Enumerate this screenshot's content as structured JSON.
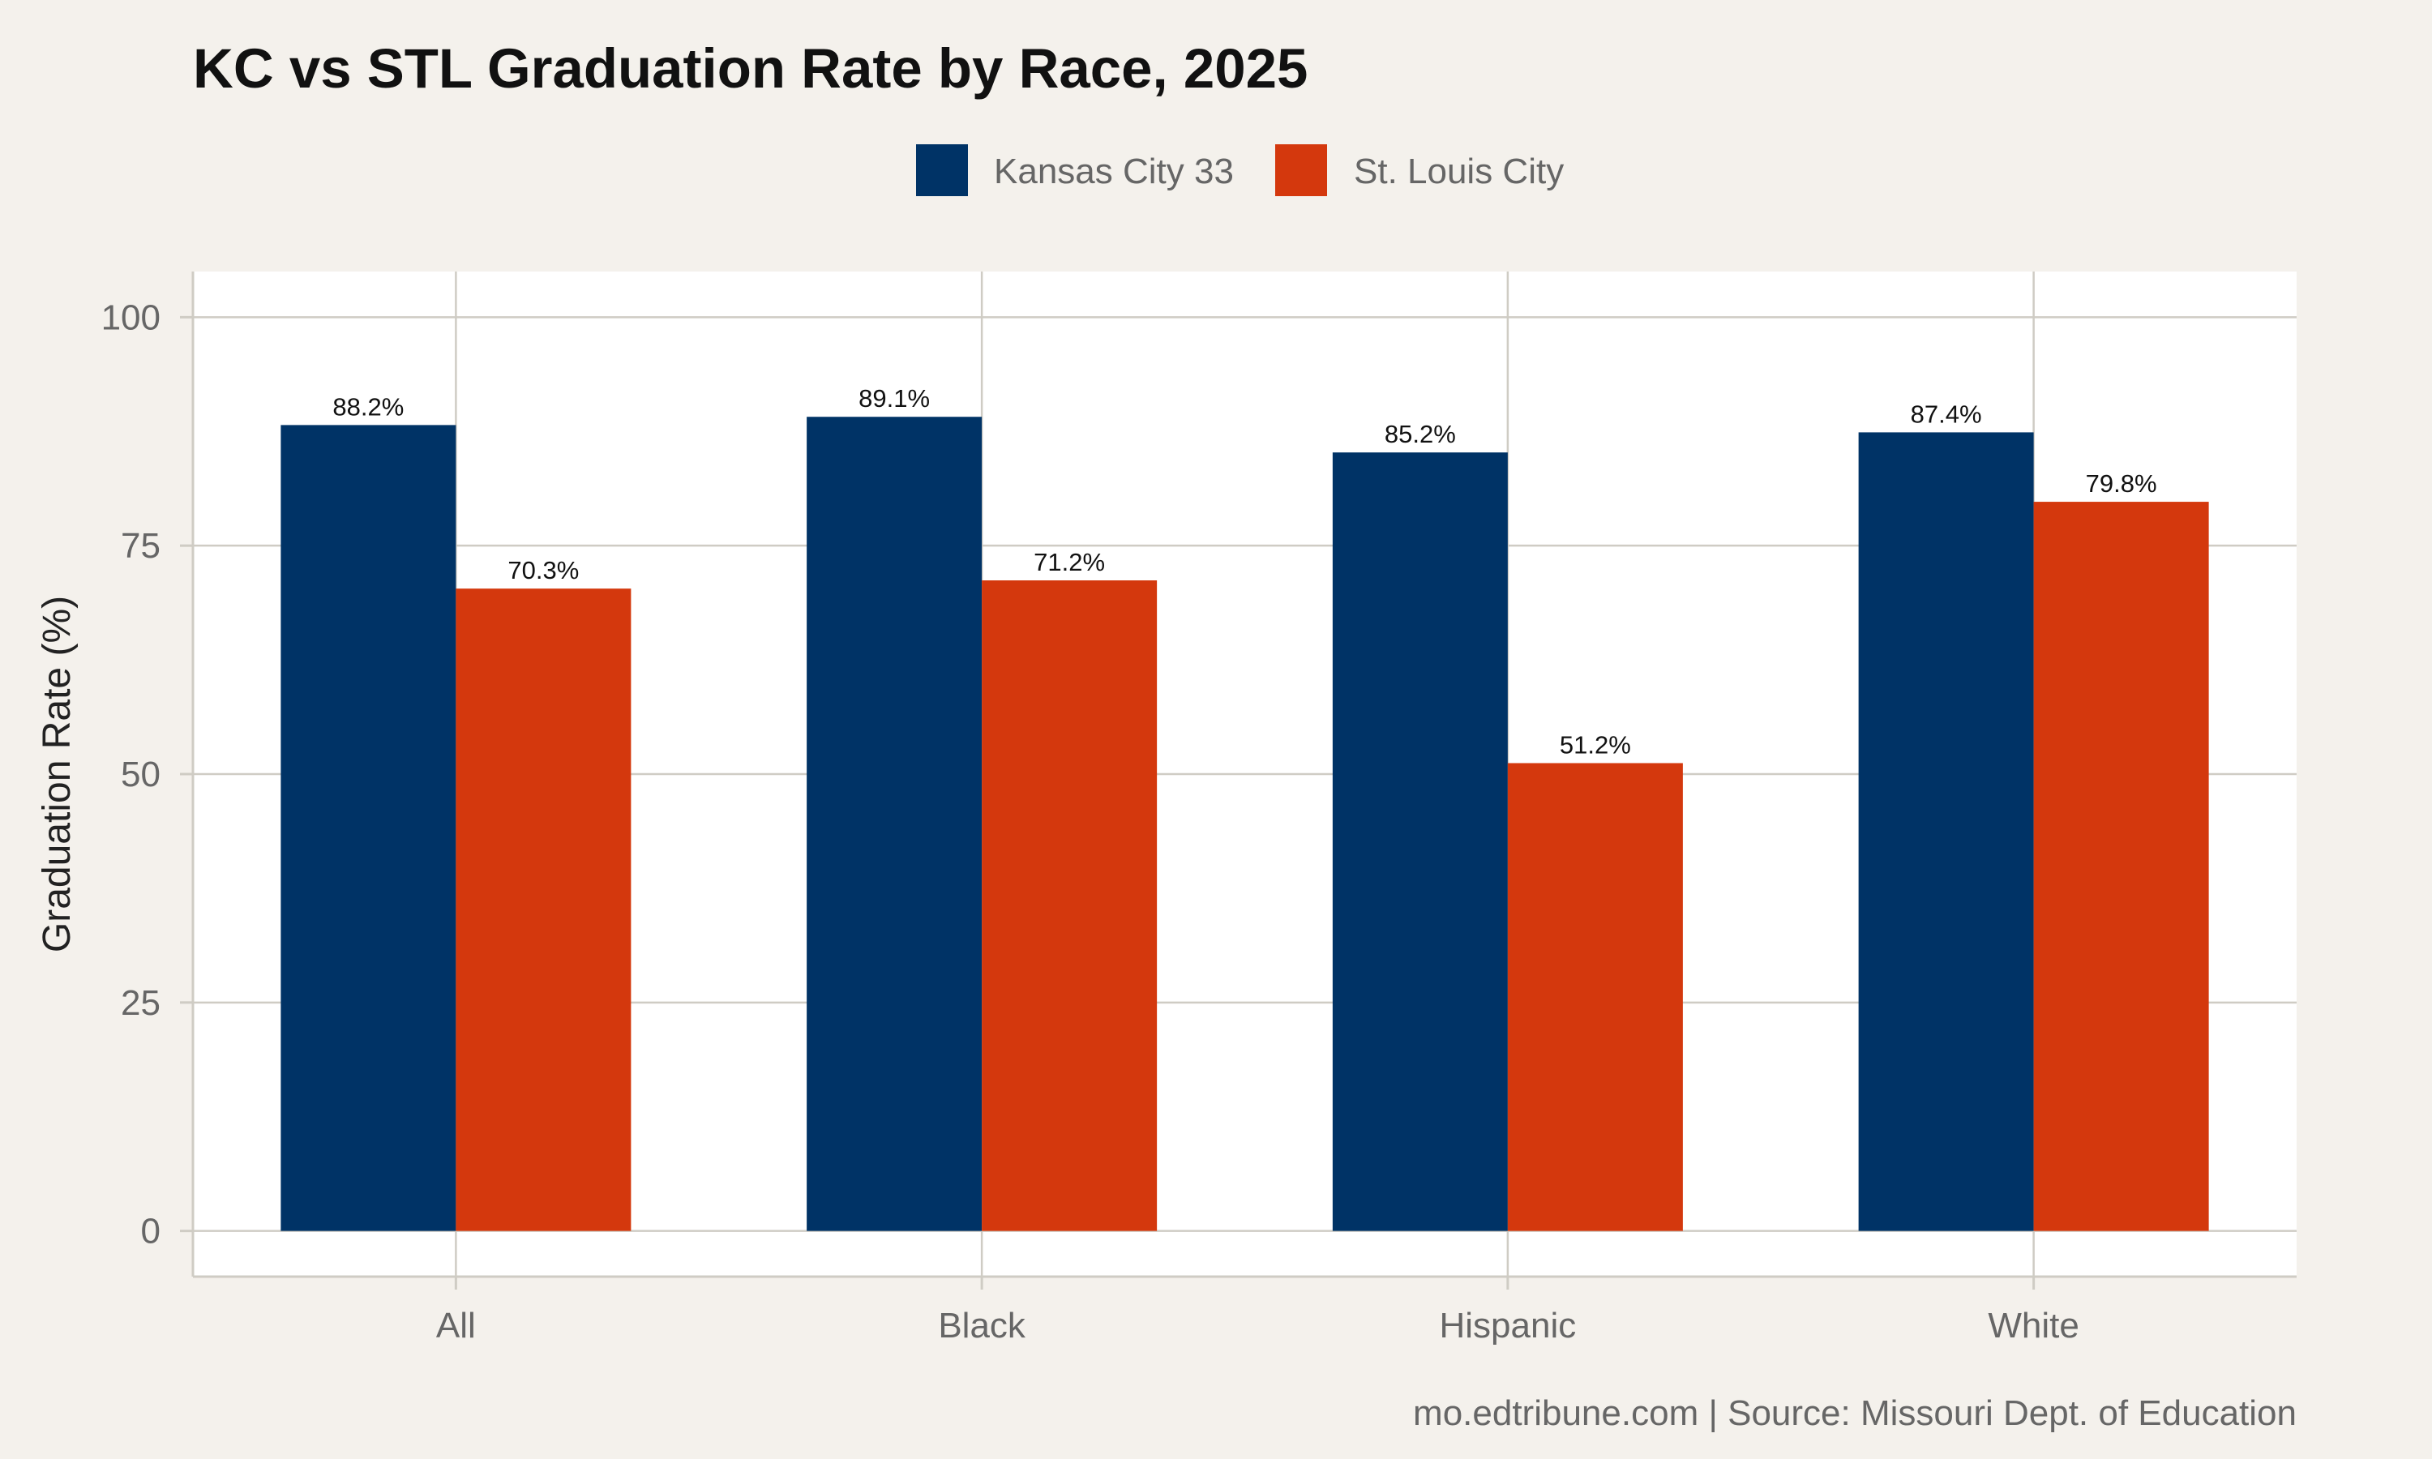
{
  "chart_data": {
    "type": "bar",
    "title": "KC vs STL Graduation Rate by Race, 2025",
    "ylabel": "Graduation Rate (%)",
    "xlabel": "",
    "categories": [
      "All",
      "Black",
      "Hispanic",
      "White"
    ],
    "series": [
      {
        "name": "Kansas City 33",
        "color": "#003366",
        "values": [
          88.2,
          89.1,
          85.2,
          87.4
        ],
        "labels": [
          "88.2%",
          "89.1%",
          "85.2%",
          "87.4%"
        ]
      },
      {
        "name": "St. Louis City",
        "color": "#D4380D",
        "values": [
          70.3,
          71.2,
          51.2,
          79.8
        ],
        "labels": [
          "70.3%",
          "71.2%",
          "51.2%",
          "79.8%"
        ]
      }
    ],
    "ylim": [
      -5,
      105
    ],
    "yticks": [
      0,
      25,
      50,
      75,
      100
    ],
    "ytick_labels": [
      "0",
      "25",
      "50",
      "75",
      "100"
    ],
    "grid": true,
    "legend_position": "top-center",
    "caption": "mo.edtribune.com | Source: Missouri Dept. of Education"
  },
  "colors": {
    "background": "#F4F1EC",
    "panel": "#FFFFFF",
    "grid": "#CFCCC4"
  }
}
